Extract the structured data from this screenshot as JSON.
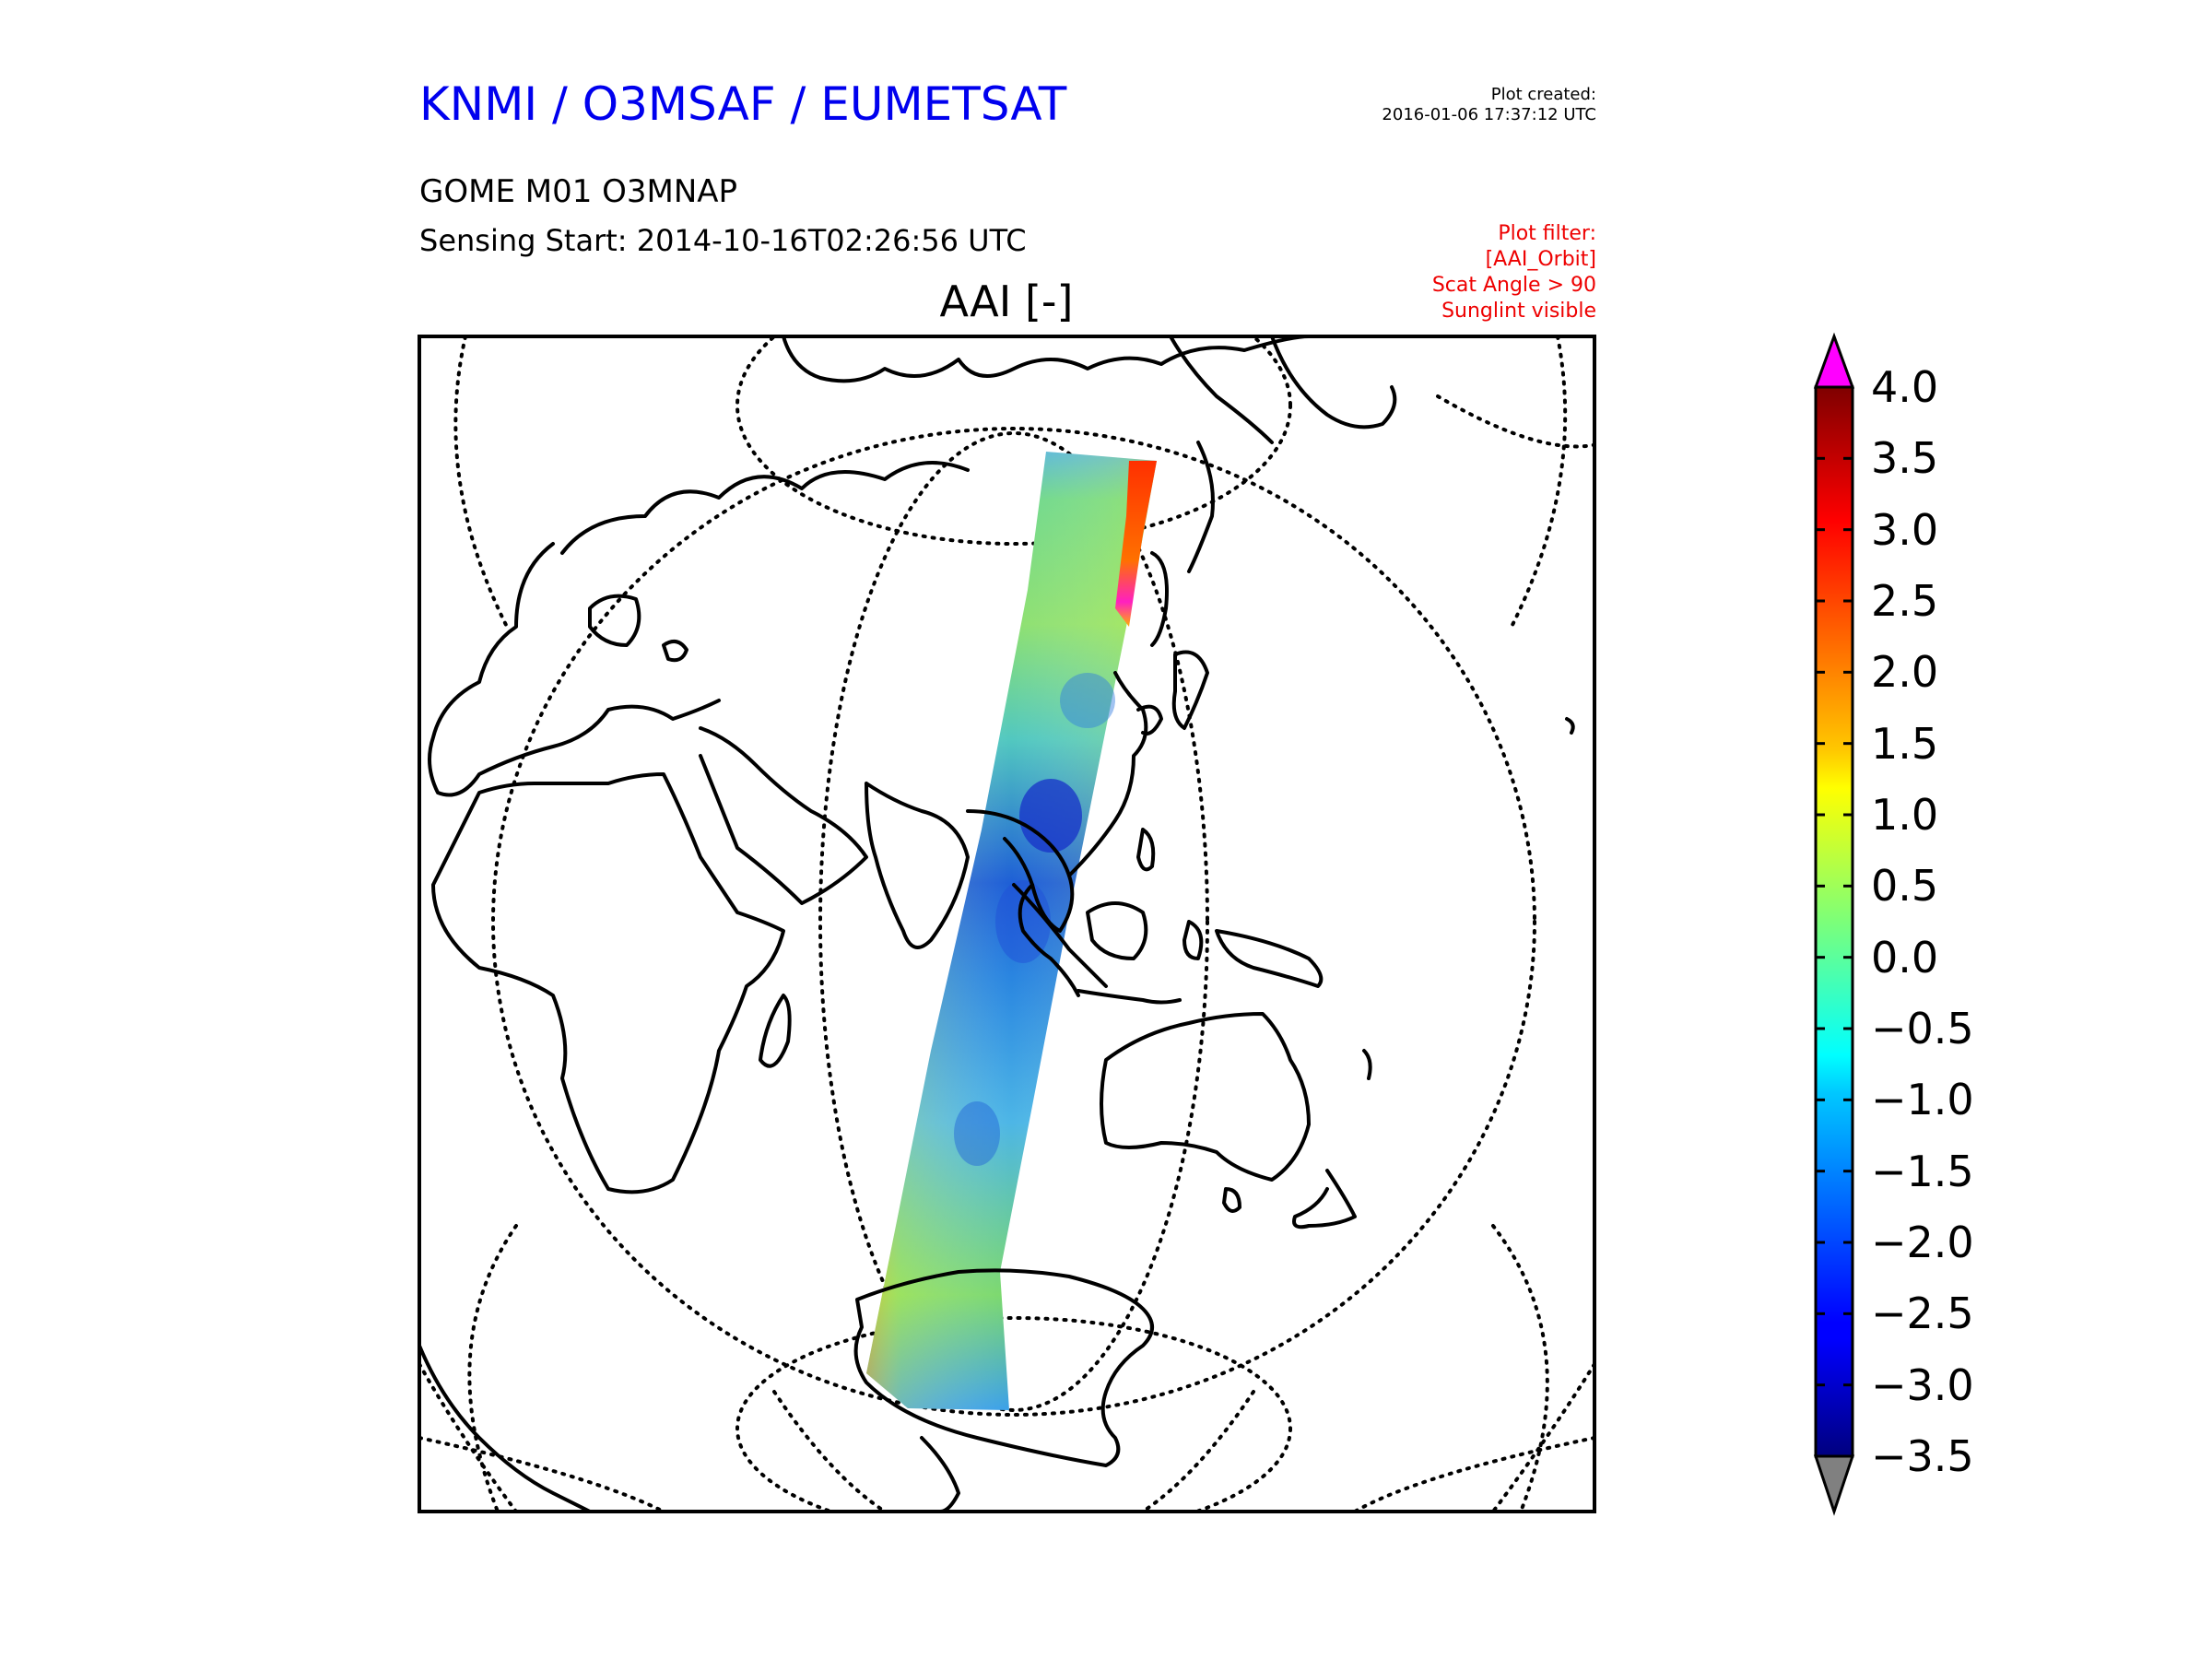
{
  "header": {
    "organization": "KNMI / O3MSAF / EUMETSAT",
    "plot_created_label": "Plot created:",
    "plot_created_time": "2016-01-06 17:37:12 UTC",
    "product": "GOME M01 O3MNAP",
    "sensing_start": "Sensing Start: 2014-10-16T02:26:56 UTC"
  },
  "plot_filter": {
    "title": "Plot filter:",
    "lines": [
      "[AAI_Orbit]",
      "Scat Angle > 90",
      "Sunglint visible"
    ]
  },
  "map": {
    "title": "AAI [-]",
    "projection": "orthographic",
    "coastlines": true,
    "graticule": "dotted",
    "swath": {
      "description_colors": "mixed AAI values along orbit swath",
      "dominant_range": [
        -2.0,
        0.5
      ],
      "high_values_region": "northern end of swath near Kamchatka / Sea of Okhotsk",
      "high_value_max": 4.0
    }
  },
  "colorbar": {
    "min": -3.5,
    "max": 4.0,
    "ticks": [
      "4.0",
      "3.5",
      "3.0",
      "2.5",
      "2.0",
      "1.5",
      "1.0",
      "0.5",
      "0.0",
      "−0.5",
      "−1.0",
      "−1.5",
      "−2.0",
      "−2.5",
      "−3.0",
      "−3.5"
    ],
    "tick_values": [
      4.0,
      3.5,
      3.0,
      2.5,
      2.0,
      1.5,
      1.0,
      0.5,
      0.0,
      -0.5,
      -1.0,
      -1.5,
      -2.0,
      -2.5,
      -3.0,
      -3.5
    ],
    "over_color": "#ff00ff",
    "under_color": "#808080",
    "colormap": "jet"
  },
  "chart_data": {
    "type": "heatmap",
    "title": "AAI [-]",
    "colorbar_range": [
      -3.5,
      4.0
    ],
    "colorbar_ticks": [
      4.0,
      3.5,
      3.0,
      2.5,
      2.0,
      1.5,
      1.0,
      0.5,
      0.0,
      -0.5,
      -1.0,
      -1.5,
      -2.0,
      -2.5,
      -3.0,
      -3.5
    ]
  }
}
